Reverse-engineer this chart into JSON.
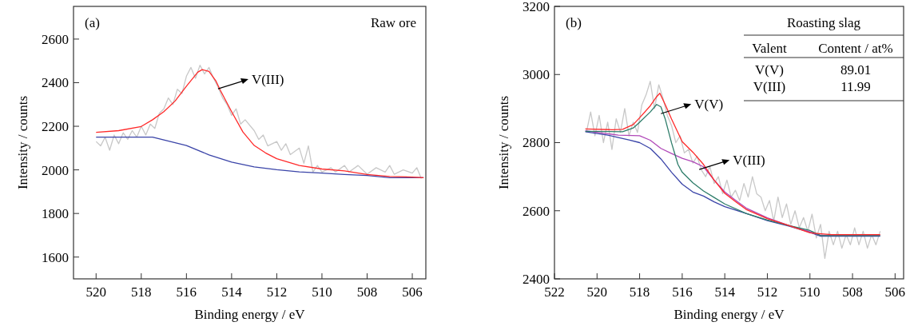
{
  "chart_data": [
    {
      "type": "line",
      "xlabel": "Binding energy / eV",
      "ylabel": "Intensity / counts",
      "xlim": [
        521,
        505.4
      ],
      "xticks": [
        520,
        518,
        516,
        514,
        512,
        510,
        508,
        506
      ],
      "ylim": [
        1500,
        2750
      ],
      "yticks": [
        1600,
        1800,
        2000,
        2200,
        2400,
        2600
      ],
      "grid": false,
      "marker": "none",
      "annotations": [
        "(a)",
        "Raw ore",
        {
          "text": "V(III)",
          "x": 514.6,
          "y": 2372
        }
      ],
      "series": [
        {
          "color": "#c8c8c8",
          "x": [
            520,
            519.8,
            519.6,
            519.4,
            519.2,
            519,
            518.8,
            518.6,
            518.4,
            518.2,
            518,
            517.8,
            517.6,
            517.4,
            517.2,
            517,
            516.8,
            516.6,
            516.4,
            516.2,
            516,
            515.8,
            515.6,
            515.4,
            515.2,
            515,
            514.8,
            514.6,
            514.4,
            514.2,
            514,
            513.8,
            513.6,
            513.4,
            513,
            512.8,
            512.6,
            512.4,
            512,
            511.8,
            511.6,
            511.4,
            511,
            510.8,
            510.6,
            510.4,
            510.2,
            510,
            509.6,
            509.4,
            509,
            508.8,
            508.4,
            508,
            507.6,
            507.2,
            507,
            506.8,
            506.4,
            506,
            505.8,
            505.6
          ],
          "values": [
            2130,
            2110,
            2150,
            2090,
            2160,
            2120,
            2170,
            2140,
            2180,
            2150,
            2200,
            2160,
            2210,
            2190,
            2260,
            2280,
            2330,
            2300,
            2370,
            2350,
            2430,
            2470,
            2420,
            2480,
            2440,
            2470,
            2420,
            2380,
            2330,
            2300,
            2250,
            2280,
            2210,
            2230,
            2180,
            2140,
            2160,
            2110,
            2130,
            2090,
            2120,
            2070,
            2100,
            2030,
            2110,
            1990,
            2020,
            1990,
            2010,
            1990,
            2020,
            1990,
            2020,
            1980,
            2010,
            1990,
            2020,
            1980,
            2000,
            1985,
            2010,
            1960
          ]
        },
        {
          "color": "#3a44a8",
          "x": [
            520,
            517.5,
            517,
            516,
            515,
            514,
            513,
            512,
            511,
            510,
            509,
            508,
            507,
            505.5
          ],
          "values": [
            2150,
            2150,
            2137,
            2112,
            2069,
            2036,
            2014,
            2001,
            1991,
            1985,
            1979,
            1974,
            1964,
            1964
          ]
        },
        {
          "color": "#ff2a2a",
          "x": [
            520,
            519,
            518,
            517.5,
            517,
            516.5,
            516,
            515.5,
            515.3,
            515,
            514.7,
            514.5,
            514,
            513.5,
            513,
            512.5,
            512,
            511,
            510,
            509,
            508,
            507,
            506,
            505.5
          ],
          "values": [
            2172,
            2180,
            2199,
            2230,
            2267,
            2316,
            2384,
            2448,
            2460,
            2452,
            2409,
            2365,
            2267,
            2174,
            2112,
            2078,
            2051,
            2020,
            2004,
            1995,
            1979,
            1970,
            1967,
            1964
          ]
        }
      ]
    },
    {
      "type": "line",
      "xlabel": "Binding energy / eV",
      "ylabel": "Intensity / counts",
      "xlim": [
        522,
        505.6
      ],
      "xticks": [
        522,
        520,
        518,
        516,
        514,
        512,
        510,
        508,
        506
      ],
      "ylim": [
        2400,
        3200
      ],
      "yticks": [
        2400,
        2600,
        2800,
        3000,
        3200
      ],
      "grid": false,
      "marker": "none",
      "annotations": [
        "(b)",
        "Roasting slag",
        "Valent",
        "Content / at%",
        "V(V)",
        "89.01",
        "V(III)",
        "11.99",
        {
          "text": "V(V)",
          "x": 517.0,
          "y": 2885
        },
        {
          "text": "V(III)",
          "x": 515.2,
          "y": 2721
        }
      ],
      "series": [
        {
          "color": "#c8c8c8",
          "x": [
            520.5,
            520.3,
            520.1,
            519.9,
            519.7,
            519.5,
            519.3,
            519.1,
            518.9,
            518.7,
            518.5,
            518.3,
            518.1,
            517.9,
            517.7,
            517.5,
            517.3,
            517.1,
            516.9,
            516.7,
            516.5,
            516.3,
            516.1,
            515.9,
            515.7,
            515.5,
            515.3,
            515.1,
            514.9,
            514.7,
            514.5,
            514.3,
            514.1,
            513.9,
            513.7,
            513.5,
            513.3,
            513.1,
            512.9,
            512.7,
            512.5,
            512.3,
            512.1,
            511.9,
            511.7,
            511.5,
            511.3,
            511.1,
            510.9,
            510.7,
            510.5,
            510.3,
            510.1,
            509.9,
            509.7,
            509.5,
            509.3,
            509.1,
            508.9,
            508.7,
            508.5,
            508.3,
            508.1,
            507.9,
            507.7,
            507.5,
            507.3,
            507.1,
            506.9,
            506.7
          ],
          "values": [
            2830,
            2890,
            2820,
            2880,
            2800,
            2860,
            2780,
            2870,
            2830,
            2900,
            2820,
            2860,
            2830,
            2910,
            2940,
            2980,
            2900,
            2970,
            2930,
            2880,
            2850,
            2800,
            2820,
            2770,
            2780,
            2740,
            2760,
            2720,
            2700,
            2730,
            2680,
            2700,
            2650,
            2690,
            2640,
            2660,
            2630,
            2680,
            2640,
            2700,
            2650,
            2640,
            2600,
            2630,
            2570,
            2640,
            2580,
            2620,
            2560,
            2600,
            2550,
            2580,
            2540,
            2590,
            2520,
            2560,
            2460,
            2540,
            2500,
            2540,
            2490,
            2530,
            2500,
            2550,
            2500,
            2540,
            2490,
            2530,
            2500,
            2540
          ]
        },
        {
          "color": "#3a44a8",
          "x": [
            520.55,
            519.5,
            519,
            518.5,
            518,
            517.5,
            517,
            516.5,
            516,
            515.5,
            515,
            514.5,
            514,
            513,
            512,
            511,
            510,
            509.5,
            506.7
          ],
          "values": [
            2832,
            2822,
            2815,
            2808,
            2800,
            2783,
            2752,
            2713,
            2678,
            2655,
            2643,
            2626,
            2612,
            2592,
            2571,
            2555,
            2537,
            2525,
            2525
          ]
        },
        {
          "color": "#b048b8",
          "x": [
            520.55,
            519,
            518,
            517.5,
            517,
            516.5,
            516,
            515.5,
            515,
            514.5,
            514,
            513.5,
            513,
            512,
            511,
            510,
            509.5,
            506.7
          ],
          "values": [
            2835,
            2822,
            2820,
            2807,
            2783,
            2768,
            2754,
            2744,
            2729,
            2690,
            2655,
            2631,
            2608,
            2579,
            2557,
            2538,
            2528,
            2528
          ]
        },
        {
          "color": "#2e7d6a",
          "x": [
            520.55,
            518.8,
            518.3,
            518,
            517.5,
            517.2,
            517,
            516.8,
            516.5,
            516.2,
            516,
            515.5,
            515,
            514.5,
            514,
            513,
            512,
            511,
            510,
            509.5,
            506.7
          ],
          "values": [
            2833,
            2832,
            2843,
            2860,
            2890,
            2912,
            2905,
            2870,
            2799,
            2736,
            2713,
            2682,
            2658,
            2639,
            2620,
            2592,
            2573,
            2557,
            2542,
            2527,
            2527
          ]
        },
        {
          "color": "#ff2a2a",
          "x": [
            520.55,
            519.3,
            518.8,
            518.3,
            518,
            517.5,
            517.2,
            517.05,
            516.8,
            516.5,
            516,
            515.5,
            515,
            514.5,
            514,
            513.5,
            513,
            512,
            511,
            510,
            509,
            507.5,
            506.7
          ],
          "values": [
            2840,
            2838,
            2839,
            2853,
            2873,
            2908,
            2935,
            2945,
            2912,
            2869,
            2803,
            2772,
            2736,
            2690,
            2651,
            2627,
            2604,
            2577,
            2557,
            2535,
            2530,
            2530,
            2530
          ]
        }
      ]
    }
  ]
}
